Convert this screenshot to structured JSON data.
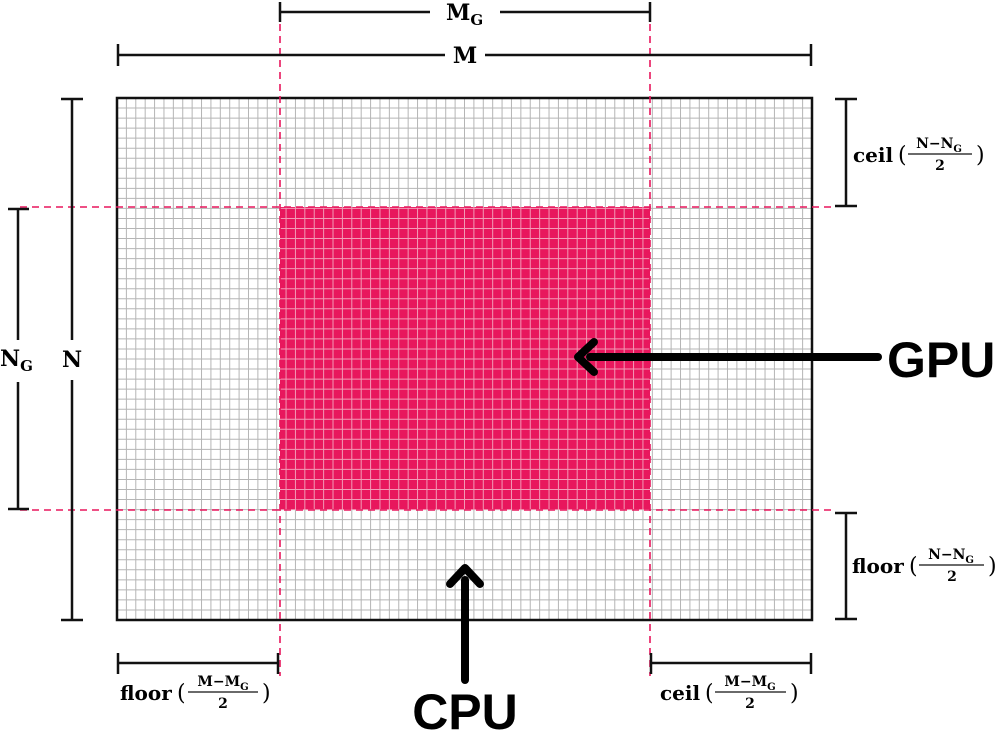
{
  "colors": {
    "accent": "#E8175D",
    "grid_line": "#b5b5b5",
    "gpu_grid_line": "#f29ab6",
    "frame": "#111111",
    "arrow": "#000000"
  },
  "grid": {
    "columns": 74,
    "rows": 52,
    "gpu_block": {
      "col_start": 16,
      "col_end": 53,
      "row_start": 11,
      "row_end": 41
    }
  },
  "labels": {
    "top_dim_mg": {
      "main": "M",
      "sub": "G"
    },
    "top_dim_m": "M",
    "left_dim_ng": {
      "main": "N",
      "sub": "G"
    },
    "left_dim_n": "N",
    "right_top": {
      "func": "ceil",
      "num_a": "N",
      "num_op": "−",
      "num_b": "N",
      "num_b_sub": "G",
      "den": "2"
    },
    "right_bottom": {
      "func": "floor",
      "num_a": "N",
      "num_op": "−",
      "num_b": "N",
      "num_b_sub": "G",
      "den": "2"
    },
    "bottom_left": {
      "func": "floor",
      "num_a": "M",
      "num_op": "−",
      "num_b": "M",
      "num_b_sub": "G",
      "den": "2"
    },
    "bottom_right": {
      "func": "ceil",
      "num_a": "M",
      "num_op": "−",
      "num_b": "M",
      "num_b_sub": "G",
      "den": "2"
    },
    "gpu": "GPU",
    "cpu": "CPU"
  }
}
